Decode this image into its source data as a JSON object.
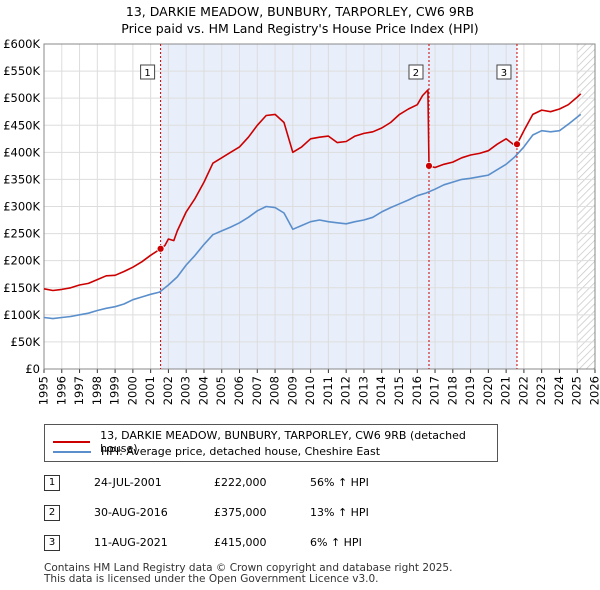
{
  "header": {
    "line1": "13, DARKIE MEADOW, BUNBURY, TARPORLEY, CW6 9RB",
    "line2": "Price paid vs. HM Land Registry's House Price Index (HPI)"
  },
  "chart_data": {
    "type": "line",
    "ylim": [
      0,
      600000
    ],
    "xlim": [
      1995,
      2026
    ],
    "yticks": [
      0,
      50000,
      100000,
      150000,
      200000,
      250000,
      300000,
      350000,
      400000,
      450000,
      500000,
      550000,
      600000
    ],
    "ytick_labels": [
      "£0",
      "£50K",
      "£100K",
      "£150K",
      "£200K",
      "£250K",
      "£300K",
      "£350K",
      "£400K",
      "£450K",
      "£500K",
      "£550K",
      "£600K"
    ],
    "xtick_labels": [
      "1995",
      "1996",
      "1997",
      "1998",
      "1999",
      "2000",
      "2001",
      "2002",
      "2003",
      "2004",
      "2005",
      "2006",
      "2007",
      "2008",
      "2009",
      "2010",
      "2011",
      "2012",
      "2013",
      "2014",
      "2015",
      "2016",
      "2017",
      "2018",
      "2019",
      "2020",
      "2021",
      "2022",
      "2023",
      "2024",
      "2025",
      "2026"
    ],
    "colors": {
      "property": "#cc0000",
      "hpi": "#5b8fcc",
      "highlight": "#e8eefa",
      "future_hatch": "#c8c8c8",
      "grid": "#dddddd",
      "sale_line": "#cc0000"
    },
    "highlight_range": [
      2001.56,
      2021.61
    ],
    "future_start": 2025.0,
    "series": [
      {
        "name": "13, DARKIE MEADOW, BUNBURY, TARPORLEY, CW6 9RB (detached house)",
        "key": "property",
        "points": [
          [
            1995.0,
            148000
          ],
          [
            1995.5,
            145000
          ],
          [
            1996.0,
            147000
          ],
          [
            1996.5,
            150000
          ],
          [
            1997.0,
            155000
          ],
          [
            1997.5,
            158000
          ],
          [
            1998.0,
            165000
          ],
          [
            1998.5,
            172000
          ],
          [
            1999.0,
            173000
          ],
          [
            1999.5,
            180000
          ],
          [
            2000.0,
            188000
          ],
          [
            2000.5,
            198000
          ],
          [
            2001.0,
            210000
          ],
          [
            2001.56,
            222000
          ],
          [
            2001.8,
            228000
          ],
          [
            2002.0,
            240000
          ],
          [
            2002.3,
            237000
          ],
          [
            2002.5,
            255000
          ],
          [
            2003.0,
            290000
          ],
          [
            2003.5,
            315000
          ],
          [
            2004.0,
            345000
          ],
          [
            2004.5,
            380000
          ],
          [
            2005.0,
            390000
          ],
          [
            2005.5,
            400000
          ],
          [
            2006.0,
            410000
          ],
          [
            2006.5,
            428000
          ],
          [
            2007.0,
            450000
          ],
          [
            2007.5,
            468000
          ],
          [
            2008.0,
            470000
          ],
          [
            2008.5,
            455000
          ],
          [
            2009.0,
            400000
          ],
          [
            2009.5,
            410000
          ],
          [
            2010.0,
            425000
          ],
          [
            2010.5,
            428000
          ],
          [
            2011.0,
            430000
          ],
          [
            2011.5,
            418000
          ],
          [
            2012.0,
            420000
          ],
          [
            2012.5,
            430000
          ],
          [
            2013.0,
            435000
          ],
          [
            2013.5,
            438000
          ],
          [
            2014.0,
            445000
          ],
          [
            2014.5,
            455000
          ],
          [
            2015.0,
            470000
          ],
          [
            2015.5,
            480000
          ],
          [
            2016.0,
            488000
          ],
          [
            2016.3,
            505000
          ],
          [
            2016.6,
            515000
          ],
          [
            2016.66,
            375000
          ],
          [
            2017.0,
            372000
          ],
          [
            2017.5,
            378000
          ],
          [
            2018.0,
            382000
          ],
          [
            2018.5,
            390000
          ],
          [
            2019.0,
            395000
          ],
          [
            2019.5,
            398000
          ],
          [
            2020.0,
            403000
          ],
          [
            2020.5,
            415000
          ],
          [
            2021.0,
            425000
          ],
          [
            2021.4,
            415000
          ],
          [
            2021.61,
            415000
          ],
          [
            2022.0,
            440000
          ],
          [
            2022.5,
            470000
          ],
          [
            2023.0,
            478000
          ],
          [
            2023.5,
            475000
          ],
          [
            2024.0,
            480000
          ],
          [
            2024.5,
            488000
          ],
          [
            2025.0,
            502000
          ],
          [
            2025.2,
            508000
          ]
        ]
      },
      {
        "name": "HPI: Average price, detached house, Cheshire East",
        "key": "hpi",
        "points": [
          [
            1995.0,
            95000
          ],
          [
            1995.5,
            93000
          ],
          [
            1996.0,
            95000
          ],
          [
            1996.5,
            97000
          ],
          [
            1997.0,
            100000
          ],
          [
            1997.5,
            103000
          ],
          [
            1998.0,
            108000
          ],
          [
            1998.5,
            112000
          ],
          [
            1999.0,
            115000
          ],
          [
            1999.5,
            120000
          ],
          [
            2000.0,
            128000
          ],
          [
            2000.5,
            133000
          ],
          [
            2001.0,
            138000
          ],
          [
            2001.5,
            142000
          ],
          [
            2002.0,
            155000
          ],
          [
            2002.5,
            170000
          ],
          [
            2003.0,
            192000
          ],
          [
            2003.5,
            210000
          ],
          [
            2004.0,
            230000
          ],
          [
            2004.5,
            248000
          ],
          [
            2005.0,
            255000
          ],
          [
            2005.5,
            262000
          ],
          [
            2006.0,
            270000
          ],
          [
            2006.5,
            280000
          ],
          [
            2007.0,
            292000
          ],
          [
            2007.5,
            300000
          ],
          [
            2008.0,
            298000
          ],
          [
            2008.5,
            288000
          ],
          [
            2009.0,
            258000
          ],
          [
            2009.5,
            265000
          ],
          [
            2010.0,
            272000
          ],
          [
            2010.5,
            275000
          ],
          [
            2011.0,
            272000
          ],
          [
            2011.5,
            270000
          ],
          [
            2012.0,
            268000
          ],
          [
            2012.5,
            272000
          ],
          [
            2013.0,
            275000
          ],
          [
            2013.5,
            280000
          ],
          [
            2014.0,
            290000
          ],
          [
            2014.5,
            298000
          ],
          [
            2015.0,
            305000
          ],
          [
            2015.5,
            312000
          ],
          [
            2016.0,
            320000
          ],
          [
            2016.5,
            325000
          ],
          [
            2017.0,
            332000
          ],
          [
            2017.5,
            340000
          ],
          [
            2018.0,
            345000
          ],
          [
            2018.5,
            350000
          ],
          [
            2019.0,
            352000
          ],
          [
            2019.5,
            355000
          ],
          [
            2020.0,
            358000
          ],
          [
            2020.5,
            368000
          ],
          [
            2021.0,
            378000
          ],
          [
            2021.5,
            392000
          ],
          [
            2022.0,
            410000
          ],
          [
            2022.5,
            432000
          ],
          [
            2023.0,
            440000
          ],
          [
            2023.5,
            438000
          ],
          [
            2024.0,
            440000
          ],
          [
            2024.5,
            452000
          ],
          [
            2025.0,
            465000
          ],
          [
            2025.2,
            470000
          ]
        ]
      }
    ],
    "sales": [
      {
        "label": "1",
        "x": 2001.56,
        "value": 222000
      },
      {
        "label": "2",
        "x": 2016.66,
        "value": 375000
      },
      {
        "label": "3",
        "x": 2021.61,
        "value": 415000
      }
    ]
  },
  "legend": {
    "property_label": "13, DARKIE MEADOW, BUNBURY, TARPORLEY, CW6 9RB (detached house)",
    "hpi_label": "HPI: Average price, detached house, Cheshire East"
  },
  "sales_table": [
    {
      "num": "1",
      "date": "24-JUL-2001",
      "price": "£222,000",
      "hpi": "56% ↑ HPI"
    },
    {
      "num": "2",
      "date": "30-AUG-2016",
      "price": "£375,000",
      "hpi": "13% ↑ HPI"
    },
    {
      "num": "3",
      "date": "11-AUG-2021",
      "price": "£415,000",
      "hpi": "6% ↑ HPI"
    }
  ],
  "footer": {
    "line1": "Contains HM Land Registry data © Crown copyright and database right 2025.",
    "line2": "This data is licensed under the Open Government Licence v3.0."
  }
}
